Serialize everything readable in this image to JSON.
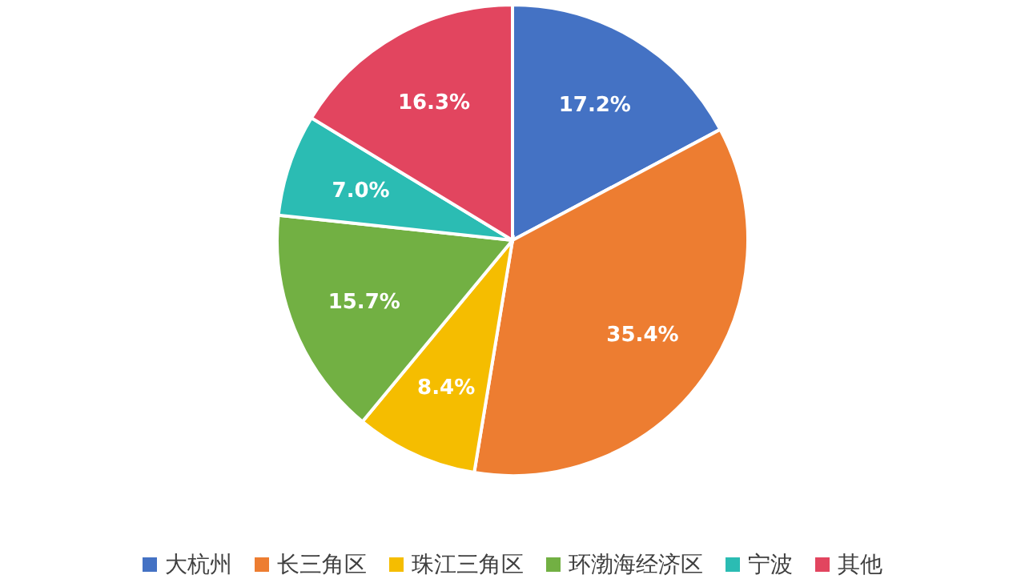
{
  "chart_data": {
    "type": "pie",
    "categories": [
      "大杭州",
      "长三角区",
      "珠江三角区",
      "环渤海经济区",
      "宁波",
      "其他"
    ],
    "values": [
      17.2,
      35.4,
      8.4,
      15.7,
      7.0,
      16.3
    ],
    "value_labels": [
      "17.2%",
      "35.4%",
      "8.4%",
      "15.7%",
      "7.0%",
      "16.3%"
    ],
    "colors": [
      "#4472c4",
      "#ed7d31",
      "#f5bd00",
      "#72b043",
      "#2bbcb3",
      "#e2455f"
    ],
    "legend": "bottom"
  }
}
